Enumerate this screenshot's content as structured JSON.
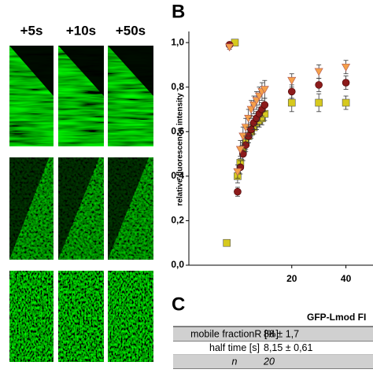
{
  "panel_labels": [
    "B",
    "C"
  ],
  "panel_a": {
    "time_labels": [
      "+5s",
      "+10s",
      "+50s"
    ]
  },
  "chart_data": {
    "type": "scatter",
    "y_label": "relative fluorescence intensity",
    "xlim": [
      -18,
      50
    ],
    "ylim": [
      0,
      1.05
    ],
    "xticks": [
      20,
      40
    ],
    "yticks": [
      {
        "value": 0,
        "label": "0,0"
      },
      {
        "value": 0.2,
        "label": "0,2"
      },
      {
        "value": 0.4,
        "label": "0,4"
      },
      {
        "value": 0.6,
        "label": "0,6"
      },
      {
        "value": 0.8,
        "label": "0,8"
      },
      {
        "value": 1.0,
        "label": "1,0"
      }
    ],
    "series": [
      {
        "marker": "square",
        "color": "#d6c91e",
        "x": [
          -4,
          -1,
          0,
          1,
          2,
          3,
          4,
          5,
          6,
          7,
          8,
          9,
          10,
          20,
          30,
          40
        ],
        "values": [
          0.1,
          1.0,
          0.4,
          0.46,
          0.52,
          0.55,
          0.58,
          0.6,
          0.62,
          0.64,
          0.65,
          0.66,
          0.68,
          0.73,
          0.73,
          0.73
        ],
        "errors": [
          0.01,
          0.01,
          0.03,
          0.03,
          0.03,
          0.03,
          0.03,
          0.03,
          0.03,
          0.03,
          0.03,
          0.03,
          0.03,
          0.04,
          0.04,
          0.03
        ]
      },
      {
        "marker": "circle",
        "color": "#8c1b1b",
        "x": [
          -3,
          0,
          1,
          2,
          3,
          4,
          5,
          6,
          7,
          8,
          9,
          10,
          20,
          30,
          40
        ],
        "values": [
          0.99,
          0.33,
          0.44,
          0.5,
          0.54,
          0.58,
          0.61,
          0.64,
          0.66,
          0.68,
          0.7,
          0.72,
          0.78,
          0.81,
          0.82
        ],
        "errors": [
          0.01,
          0.02,
          0.03,
          0.03,
          0.03,
          0.03,
          0.03,
          0.03,
          0.03,
          0.03,
          0.03,
          0.03,
          0.03,
          0.03,
          0.03
        ]
      },
      {
        "marker": "triangle",
        "color": "#f5a04a",
        "x": [
          -3,
          0,
          1,
          2,
          3,
          4,
          5,
          6,
          7,
          8,
          9,
          10,
          20,
          30,
          40
        ],
        "values": [
          0.98,
          0.42,
          0.52,
          0.58,
          0.62,
          0.66,
          0.7,
          0.72,
          0.74,
          0.76,
          0.78,
          0.79,
          0.83,
          0.87,
          0.89
        ],
        "errors": [
          0.01,
          0.03,
          0.04,
          0.04,
          0.04,
          0.04,
          0.04,
          0.04,
          0.04,
          0.04,
          0.04,
          0.04,
          0.03,
          0.03,
          0.03
        ]
      }
    ]
  },
  "panel_c": {
    "header": "GFP-Lmod FI",
    "rows": [
      [
        "mobile fractionR [%]",
        "88 ± 1,7"
      ],
      [
        "half time [s]",
        "8,15 ± 0,61"
      ],
      [
        "n",
        "20"
      ]
    ]
  }
}
